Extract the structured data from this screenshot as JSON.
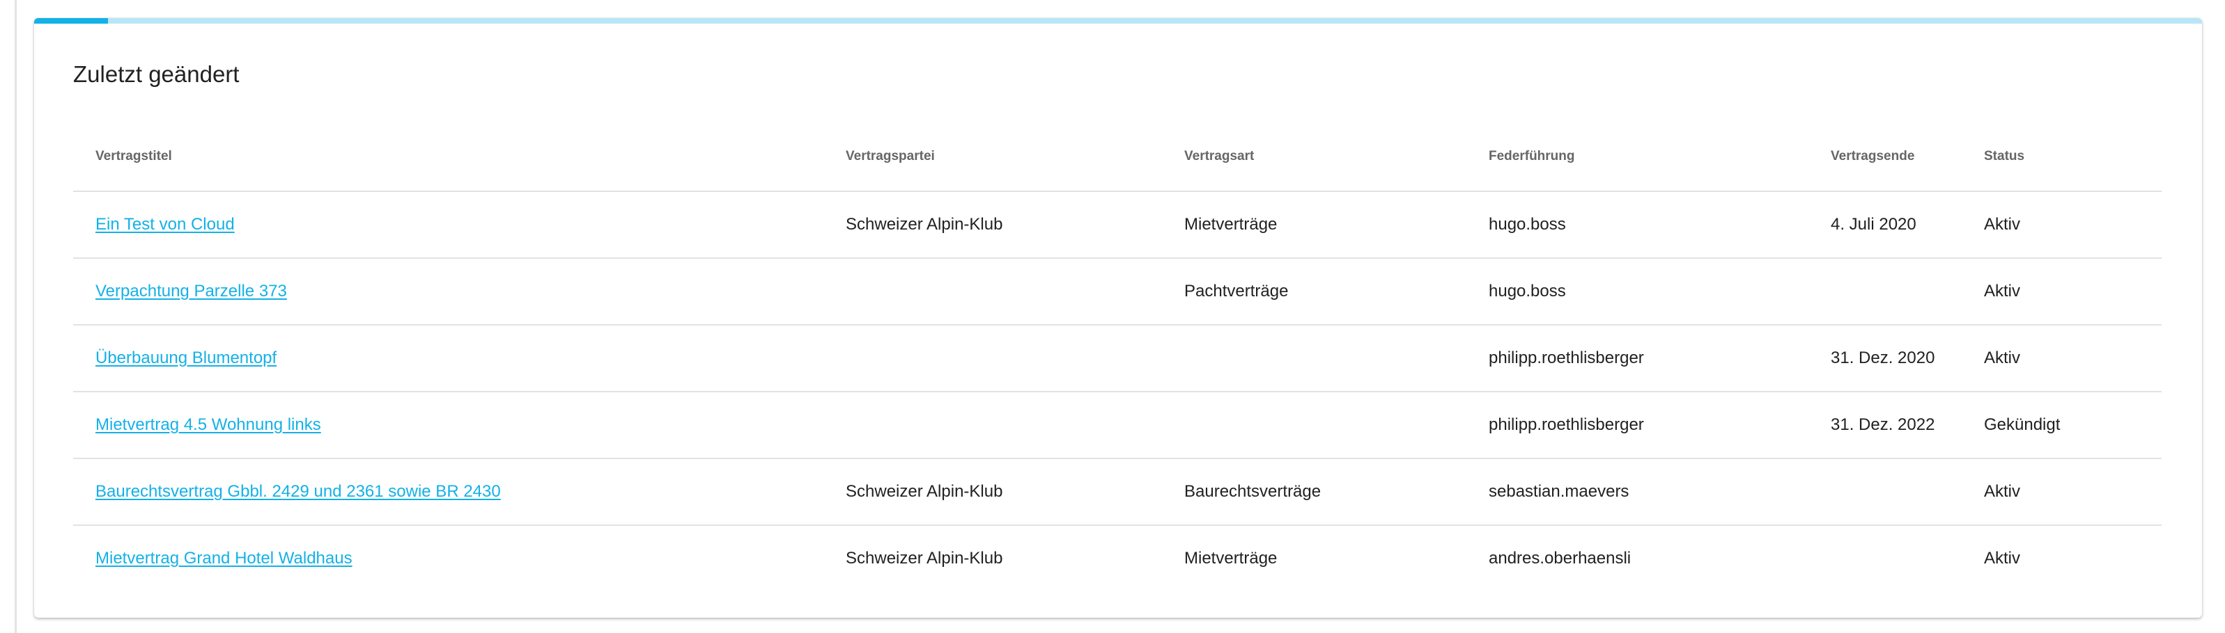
{
  "card": {
    "title": "Zuletzt geändert",
    "progress_percent": 3.4,
    "accent_color": "#14b1e7",
    "track_color": "#b9e6f7"
  },
  "table": {
    "headers": [
      "Vertragstitel",
      "Vertragspartei",
      "Vertragsart",
      "Federführung",
      "Vertragsende",
      "Status"
    ],
    "rows": [
      {
        "title": "Ein Test von Cloud",
        "party": "Schweizer Alpin-Klub",
        "type": "Mietverträge",
        "lead": "hugo.boss",
        "end": "4. Juli 2020",
        "status": "Aktiv"
      },
      {
        "title": "Verpachtung Parzelle 373",
        "party": "",
        "type": "Pachtverträge",
        "lead": "hugo.boss",
        "end": "",
        "status": "Aktiv"
      },
      {
        "title": "Überbauung Blumentopf",
        "party": "",
        "type": "",
        "lead": "philipp.roethlisberger",
        "end": "31. Dez. 2020",
        "status": "Aktiv"
      },
      {
        "title": "Mietvertrag 4.5 Wohnung links",
        "party": "",
        "type": "",
        "lead": "philipp.roethlisberger",
        "end": "31. Dez. 2022",
        "status": "Gekündigt"
      },
      {
        "title": "Baurechtsvertrag Gbbl. 2429 und 2361 sowie BR 2430",
        "party": "Schweizer Alpin-Klub",
        "type": "Baurechtsverträge",
        "lead": "sebastian.maevers",
        "end": "",
        "status": "Aktiv"
      },
      {
        "title": "Mietvertrag Grand Hotel Waldhaus",
        "party": "Schweizer Alpin-Klub",
        "type": "Mietverträge",
        "lead": "andres.oberhaensli",
        "end": "",
        "status": "Aktiv"
      }
    ]
  }
}
